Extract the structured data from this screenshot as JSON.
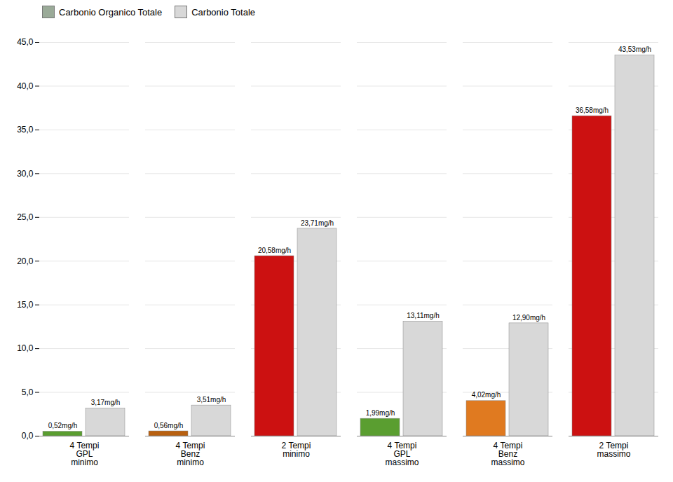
{
  "chart_data": {
    "type": "bar",
    "categories": [
      "4 Tempi\nGPL\nminimo",
      "4 Tempi\nBenz\nminimo",
      "2 Tempi\nminimo",
      "4 Tempi\nGPL\nmassimo",
      "4 Tempi\nBenz\nmassimo",
      "2 Tempi\nmassimo"
    ],
    "series": [
      {
        "name": "Carbonio Organico Totale",
        "color": "#9aaa98",
        "colors": [
          "#5a9e30",
          "#b86010",
          "#cc1111",
          "#5a9e30",
          "#e07a20",
          "#cc1111"
        ],
        "values": [
          0.52,
          0.56,
          20.58,
          1.99,
          4.02,
          36.58
        ],
        "value_labels": [
          "0,52mg/h",
          "0,56mg/h",
          "20,58mg/h",
          "1,99mg/h",
          "4,02mg/h",
          "36,58mg/h"
        ]
      },
      {
        "name": "Carbonio Totale",
        "color": "#d8d8d8",
        "values": [
          3.17,
          3.51,
          23.71,
          13.11,
          12.9,
          43.53
        ],
        "value_labels": [
          "3,17mg/h",
          "3,51mg/h",
          "23,71mg/h",
          "13,11mg/h",
          "12,90mg/h",
          "43,53mg/h"
        ]
      }
    ],
    "ylim": [
      0,
      45
    ],
    "yticks": [
      {
        "value": 0,
        "label": "0,0"
      },
      {
        "value": 5,
        "label": "5,0"
      },
      {
        "value": 10,
        "label": "10,0"
      },
      {
        "value": 15,
        "label": "15,0"
      },
      {
        "value": 20,
        "label": "20,0"
      },
      {
        "value": 25,
        "label": "25,0"
      },
      {
        "value": 30,
        "label": "30,0"
      },
      {
        "value": 35,
        "label": "35,0"
      },
      {
        "value": 40,
        "label": "40,0"
      },
      {
        "value": 45,
        "label": "45,0"
      }
    ],
    "grid": true,
    "legend": "upper left",
    "data_labels": true
  }
}
